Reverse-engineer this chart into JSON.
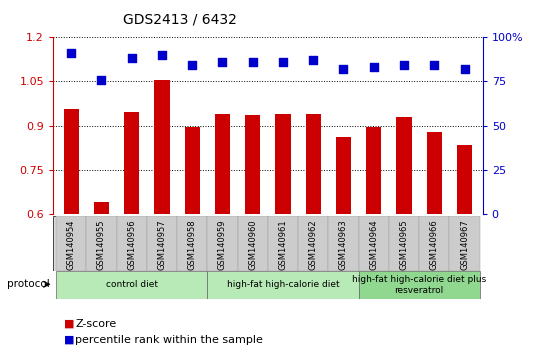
{
  "title": "GDS2413 / 6432",
  "samples": [
    "GSM140954",
    "GSM140955",
    "GSM140956",
    "GSM140957",
    "GSM140958",
    "GSM140959",
    "GSM140960",
    "GSM140961",
    "GSM140962",
    "GSM140963",
    "GSM140964",
    "GSM140965",
    "GSM140966",
    "GSM140967"
  ],
  "z_scores": [
    0.955,
    0.64,
    0.945,
    1.055,
    0.895,
    0.94,
    0.935,
    0.94,
    0.94,
    0.86,
    0.895,
    0.93,
    0.88,
    0.835
  ],
  "percentile_ranks": [
    91,
    76,
    88,
    90,
    84,
    86,
    86,
    86,
    87,
    82,
    83,
    84,
    84,
    82
  ],
  "bar_color": "#cc0000",
  "dot_color": "#0000cc",
  "ylim_left": [
    0.6,
    1.2
  ],
  "ylim_right": [
    0,
    100
  ],
  "yticks_left": [
    0.6,
    0.75,
    0.9,
    1.05,
    1.2
  ],
  "ytick_labels_left": [
    "0.6",
    "0.75",
    "0.9",
    "1.05",
    "1.2"
  ],
  "yticks_right": [
    0,
    25,
    50,
    75,
    100
  ],
  "ytick_labels_right": [
    "0",
    "25",
    "50",
    "75",
    "100%"
  ],
  "groups": [
    {
      "label": "control diet",
      "start": 0,
      "end": 4,
      "color": "#b8eab8"
    },
    {
      "label": "high-fat high-calorie diet",
      "start": 5,
      "end": 9,
      "color": "#b8eab8"
    },
    {
      "label": "high-fat high-calorie diet plus\nresveratrol",
      "start": 10,
      "end": 13,
      "color": "#90d890"
    }
  ],
  "group_boundaries": [
    4.5,
    9.5
  ],
  "protocol_label": "protocol",
  "legend_items": [
    {
      "color": "#cc0000",
      "label": "Z-score"
    },
    {
      "color": "#0000cc",
      "label": "percentile rank within the sample"
    }
  ],
  "background_color": "#ffffff",
  "axis_left_color": "#cc0000",
  "axis_right_color": "#0000cc",
  "bar_width": 0.5,
  "dot_size": 40
}
